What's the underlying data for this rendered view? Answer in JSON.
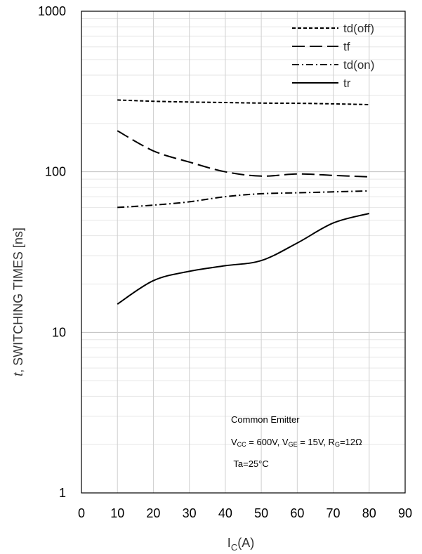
{
  "chart_data": {
    "type": "line",
    "x_scale": "linear",
    "y_scale": "log",
    "xlim": [
      0,
      90
    ],
    "ylim": [
      1,
      1000
    ],
    "x_ticks": [
      "0",
      "10",
      "20",
      "30",
      "40",
      "50",
      "60",
      "70",
      "80",
      "90"
    ],
    "y_ticks": [
      "1",
      "10",
      "100",
      "1000"
    ],
    "grid": true,
    "legend_placement": "top-right",
    "ylabel_italic": "t",
    "ylabel_rest": ", SWITCHING TIMES [ns]",
    "xlabel_main": "I",
    "xlabel_sub": "C",
    "xlabel_unit": "(A)",
    "series": [
      {
        "name": "td(off)",
        "dash": "short-dash",
        "x": [
          10,
          20,
          30,
          40,
          50,
          60,
          70,
          80
        ],
        "y": [
          280,
          275,
          272,
          270,
          268,
          267,
          265,
          262
        ]
      },
      {
        "name": "tf",
        "dash": "long-dash",
        "x": [
          10,
          20,
          30,
          40,
          50,
          60,
          70,
          80
        ],
        "y": [
          180,
          135,
          115,
          100,
          94,
          97,
          95,
          93
        ]
      },
      {
        "name": "td(on)",
        "dash": "dash-dot",
        "x": [
          10,
          20,
          30,
          40,
          50,
          60,
          70,
          80
        ],
        "y": [
          60,
          62,
          65,
          70,
          73,
          74,
          75,
          76
        ]
      },
      {
        "name": "tr",
        "dash": "solid",
        "x": [
          10,
          20,
          30,
          40,
          50,
          60,
          70,
          80
        ],
        "y": [
          15,
          21,
          24,
          26,
          28,
          36,
          48,
          55
        ]
      }
    ],
    "annotations": {
      "line1": "Common Emitter",
      "line2": {
        "p1": "V",
        "p1sub": "CC",
        "p2": " = 600V, V",
        "p2sub": "GE",
        "p3": " = 15V, R",
        "p3sub": "G",
        "p4": "=12Ω"
      },
      "line3": " Ta=25°C"
    }
  }
}
